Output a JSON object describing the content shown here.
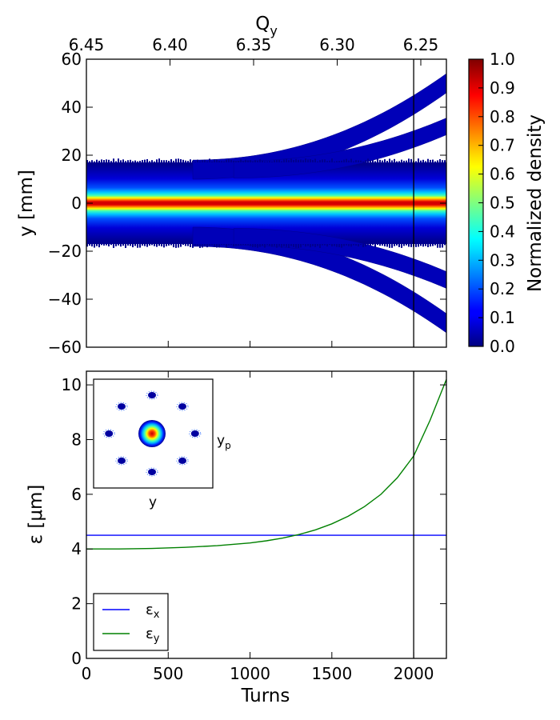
{
  "chart_data": [
    {
      "type": "heatmap",
      "xlabel": "",
      "ylabel": "y [mm]",
      "top_xlabel_base": "Q",
      "top_xlabel_sub": "y",
      "x_range": [
        0,
        2200
      ],
      "xlim": [
        0,
        2200
      ],
      "ylim": [
        -60,
        60
      ],
      "yticks": [
        -60,
        -40,
        -20,
        0,
        20,
        40,
        60
      ],
      "yticklabels": [
        "−60",
        "−40",
        "−20",
        "0",
        "20",
        "40",
        "60"
      ],
      "top_xticks": [
        6.45,
        6.4,
        6.35,
        6.3,
        6.25
      ],
      "top_xticklabels": [
        "6.45",
        "6.40",
        "6.35",
        "6.30",
        "6.25"
      ],
      "vline_x": 2000,
      "colorbar": {
        "label": "Normalized density",
        "ticks": [
          0.0,
          0.1,
          0.2,
          0.3,
          0.4,
          0.5,
          0.6,
          0.7,
          0.8,
          0.9,
          1.0
        ],
        "ticklabels": [
          "0.0",
          "0.1",
          "0.2",
          "0.3",
          "0.4",
          "0.5",
          "0.6",
          "0.7",
          "0.8",
          "0.9",
          "1.0"
        ],
        "colormap": "jet"
      },
      "core_halfwidth_mm": 17,
      "outer_branch_y_at_2200": 50,
      "inner_branch_y_at_2200": 32
    },
    {
      "type": "line",
      "xlabel": "Turns",
      "ylabel": "ε [μm]",
      "xlim": [
        0,
        2200
      ],
      "ylim": [
        0,
        10.5
      ],
      "xticks": [
        0,
        500,
        1000,
        1500,
        2000
      ],
      "xticklabels": [
        "0",
        "500",
        "1000",
        "1500",
        "2000"
      ],
      "yticks": [
        0,
        2,
        4,
        6,
        8,
        10
      ],
      "yticklabels": [
        "0",
        "2",
        "4",
        "6",
        "8",
        "10"
      ],
      "vline_x": 2000,
      "series": [
        {
          "name_base": "ε",
          "name_sub": "x",
          "color": "#0000ff",
          "x": [
            0,
            2200
          ],
          "y": [
            4.5,
            4.5
          ]
        },
        {
          "name_base": "ε",
          "name_sub": "y",
          "color": "#008000",
          "x": [
            0,
            200,
            400,
            600,
            800,
            1000,
            1100,
            1200,
            1300,
            1400,
            1500,
            1600,
            1700,
            1800,
            1900,
            2000,
            2100,
            2200
          ],
          "y": [
            4.0,
            4.0,
            4.02,
            4.06,
            4.12,
            4.22,
            4.3,
            4.4,
            4.53,
            4.7,
            4.92,
            5.2,
            5.55,
            6.0,
            6.6,
            7.4,
            8.7,
            10.2
          ]
        }
      ],
      "legend_position": "lower-left",
      "inset": {
        "xlabel": "y",
        "ylabel_base": "y",
        "ylabel_sub": "p",
        "islands": 8
      }
    }
  ]
}
